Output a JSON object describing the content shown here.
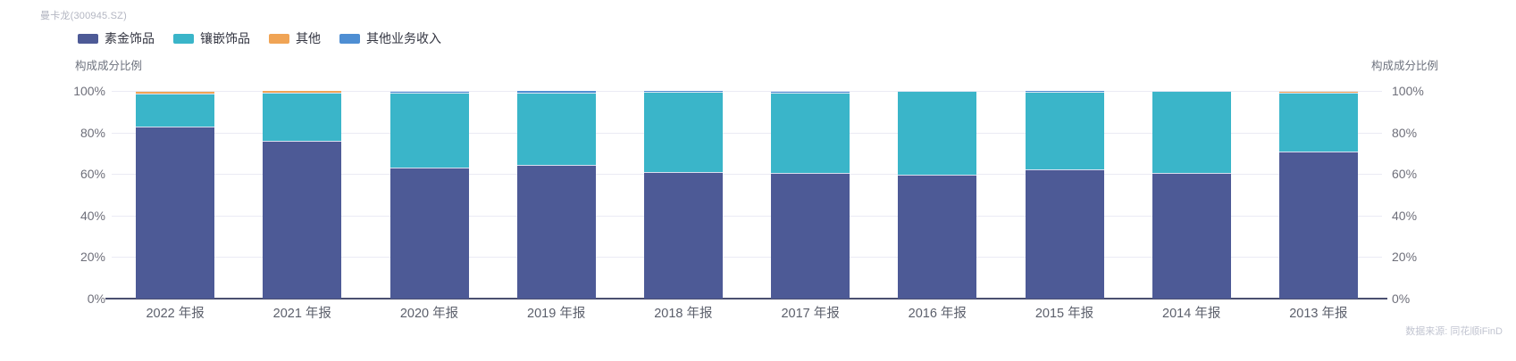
{
  "title": "曼卡龙(300945.SZ)",
  "source_note": "数据来源: 同花顺iFinD",
  "axis_name_left": "构成成分比例",
  "axis_name_right": "构成成分比例",
  "colors": {
    "series_sujin": "#4d5a96",
    "series_xiangqian": "#3ab5c9",
    "series_qita": "#f0a455",
    "series_qita_yewu": "#4e8ed3",
    "gridline": "#ebebf4",
    "axis_line": "#4a4f70"
  },
  "chart_data": {
    "type": "bar",
    "stacked": true,
    "title": "构成成分比例",
    "xlabel": "",
    "ylabel": "构成成分比例",
    "ylim": [
      0,
      100
    ],
    "grid": true,
    "legend_position": "top-left",
    "yticks": [
      "0%",
      "20%",
      "40%",
      "60%",
      "80%",
      "100%"
    ],
    "categories": [
      "2022 年报",
      "2021 年报",
      "2020 年报",
      "2019 年报",
      "2018 年报",
      "2017 年报",
      "2016 年报",
      "2015 年报",
      "2014 年报",
      "2013 年报"
    ],
    "series": [
      {
        "name": "素金饰品",
        "color": "#4d5a96",
        "values": [
          83.0,
          75.8,
          62.9,
          64.3,
          60.8,
          60.4,
          59.8,
          62.2,
          60.6,
          70.9
        ]
      },
      {
        "name": "镶嵌饰品",
        "color": "#3ab5c9",
        "values": [
          15.7,
          23.5,
          36.1,
          34.9,
          38.9,
          38.6,
          40.2,
          37.5,
          39.4,
          28.1
        ]
      },
      {
        "name": "其他",
        "color": "#f0a455",
        "values": [
          1.3,
          0.7,
          0.0,
          0.0,
          0.0,
          0.0,
          0.0,
          0.0,
          0.0,
          1.0
        ]
      },
      {
        "name": "其他业务收入",
        "color": "#4e8ed3",
        "values": [
          0.0,
          0.0,
          1.0,
          0.8,
          0.3,
          1.0,
          0.0,
          0.3,
          0.0,
          0.0
        ]
      }
    ]
  }
}
